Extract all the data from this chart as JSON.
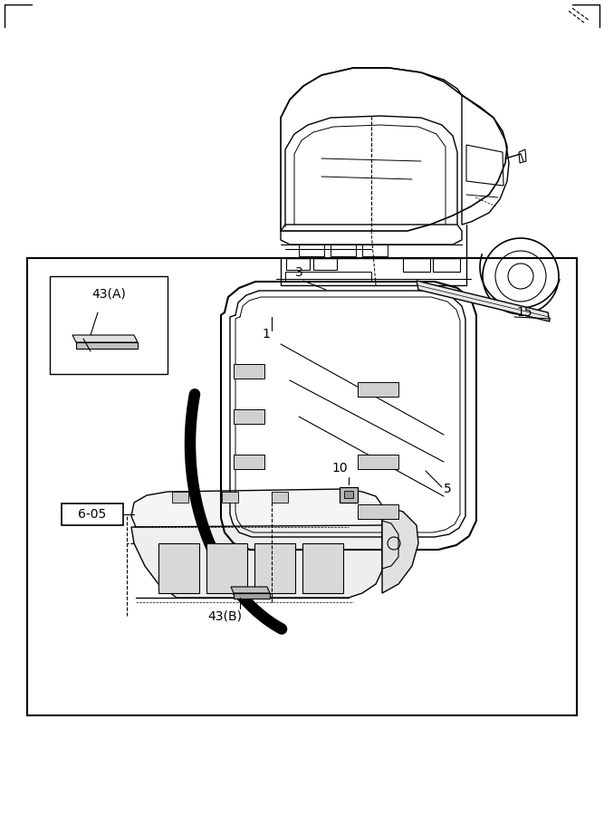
{
  "bg_color": "#ffffff",
  "line_color": "#000000",
  "fig_width": 6.67,
  "fig_height": 9.0,
  "dpi": 100
}
